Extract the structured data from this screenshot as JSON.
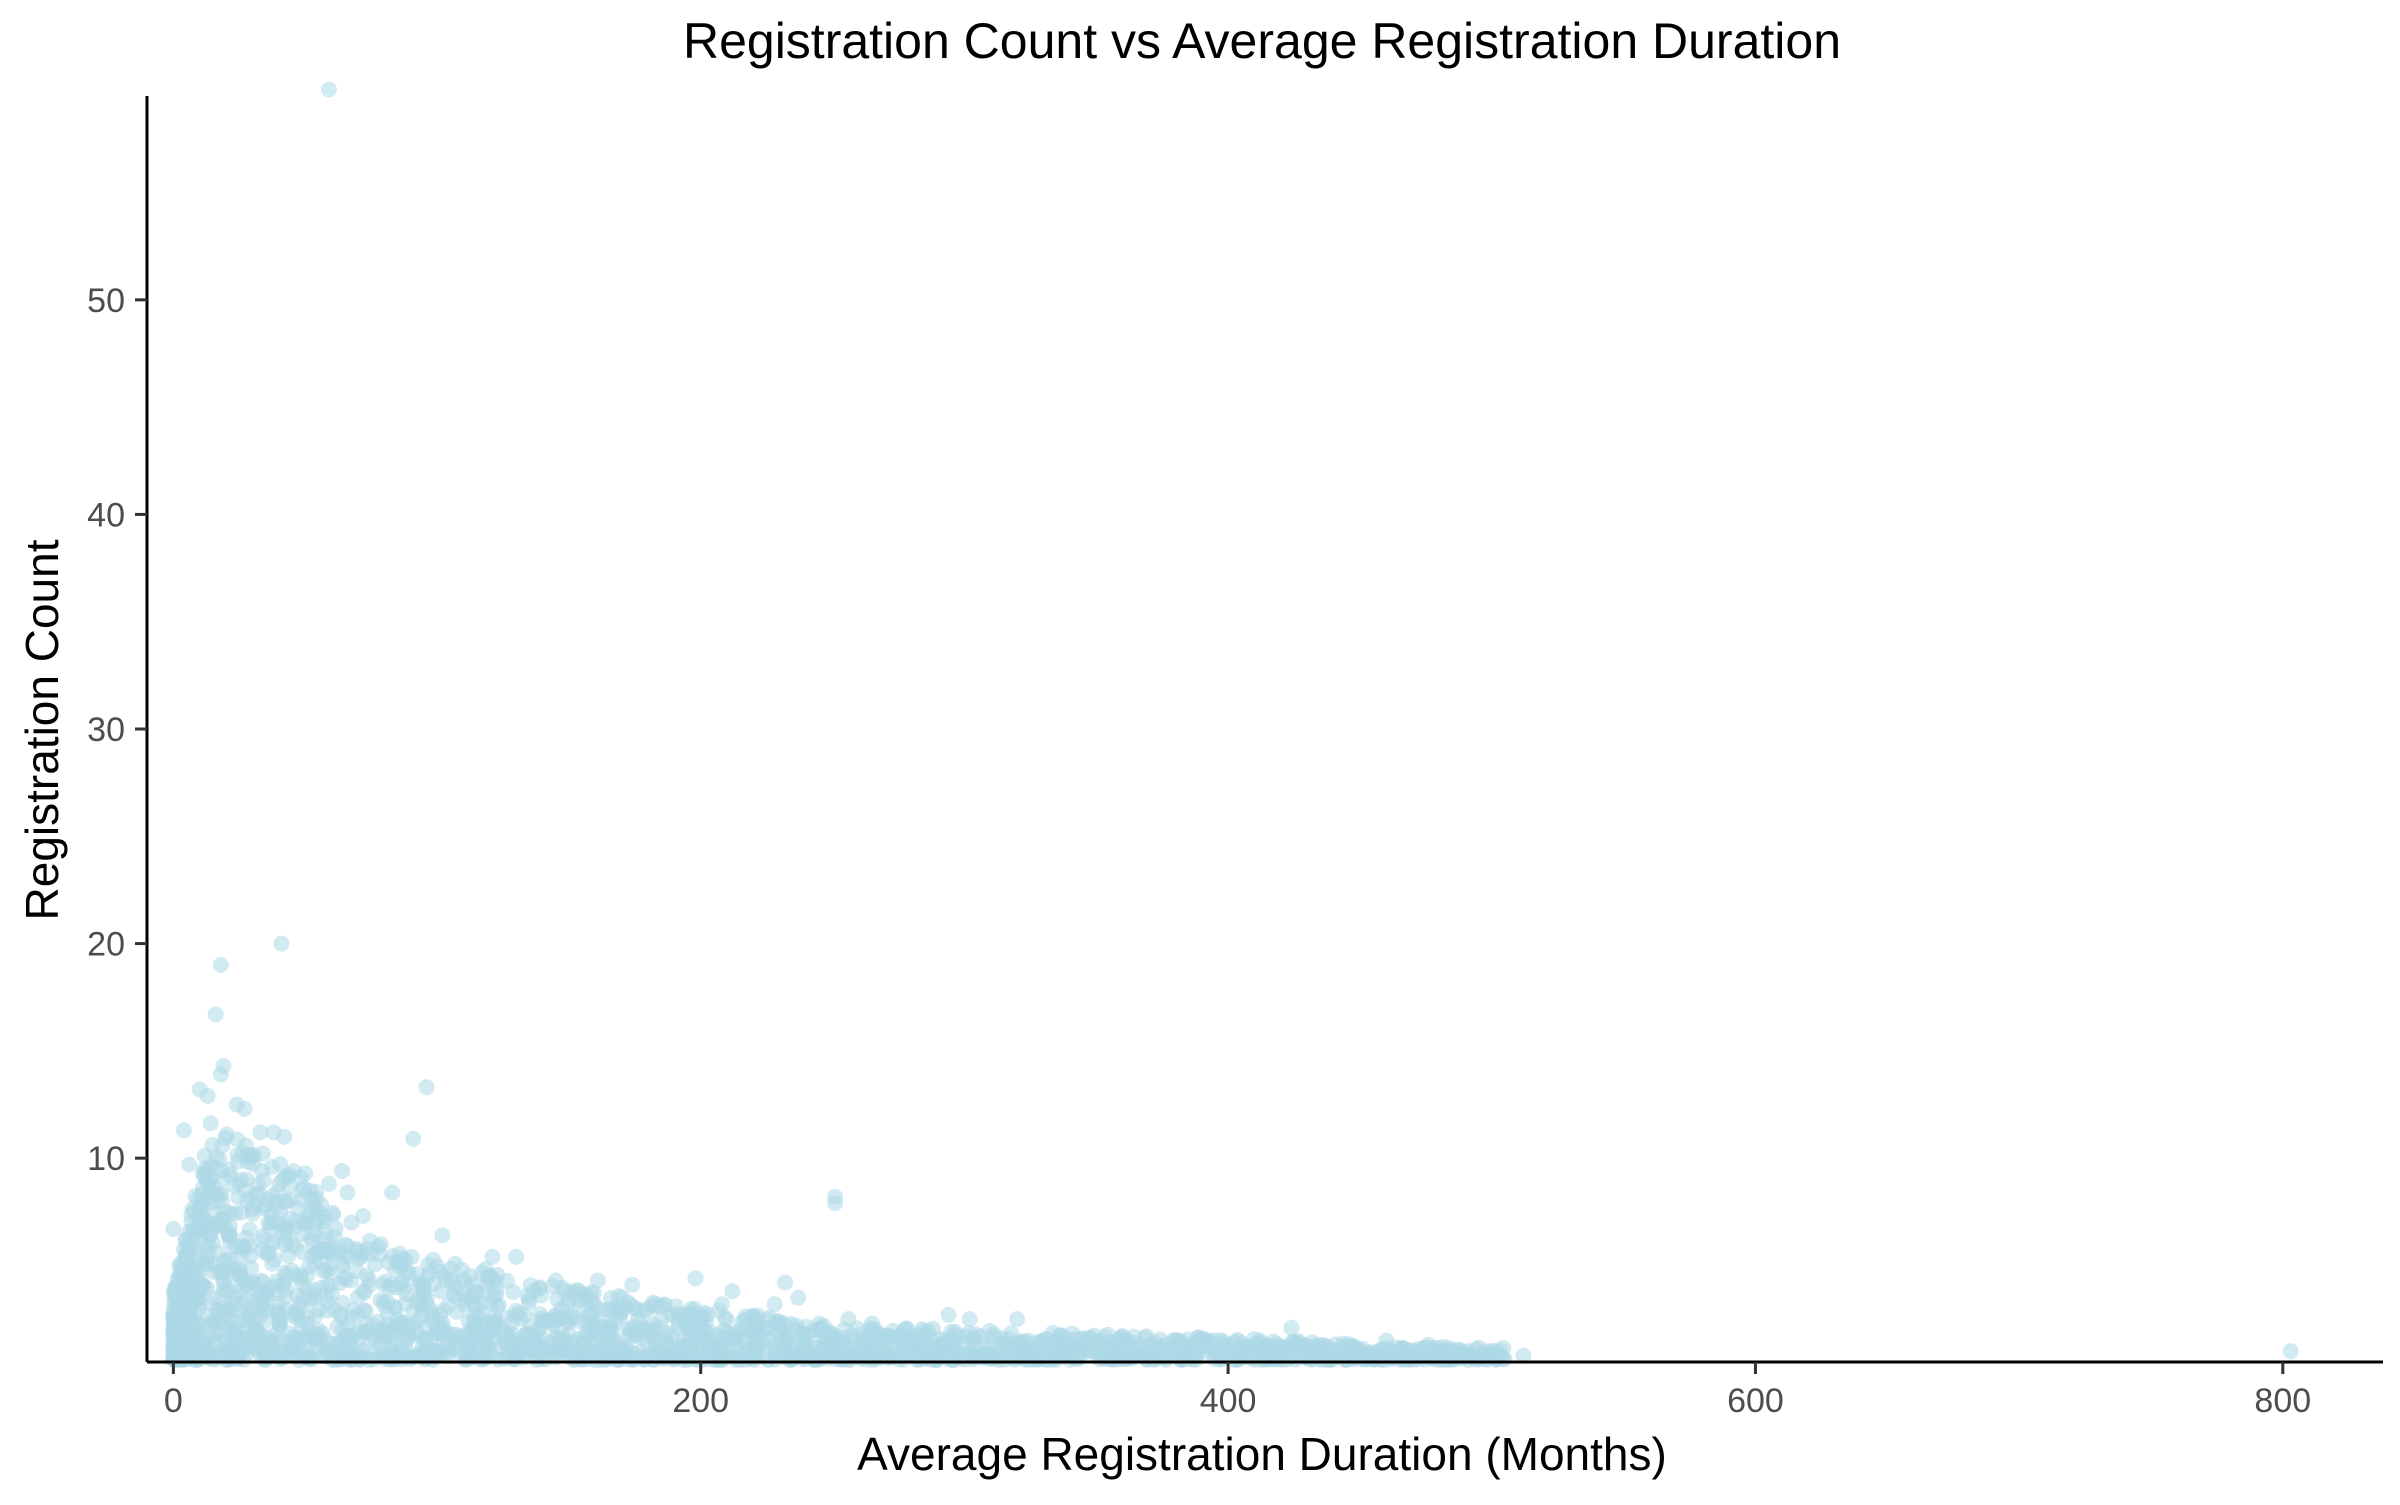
{
  "chart_data": {
    "type": "scatter",
    "title": "Registration Count vs Average Registration Duration",
    "xlabel": "Average Registration Duration (Months)",
    "ylabel": "Registration Count",
    "xlim": [
      -10,
      838
    ],
    "ylim": [
      0.5,
      59.5
    ],
    "x_ticks": [
      0,
      200,
      400,
      600,
      800
    ],
    "x_tick_labels": [
      "0",
      "200",
      "400",
      "600",
      "800"
    ],
    "y_ticks": [
      10,
      20,
      30,
      40,
      50
    ],
    "y_tick_labels": [
      "10",
      "20",
      "30",
      "40",
      "50"
    ],
    "grid": false,
    "legend": "none",
    "point_color": "#add8e6",
    "point_opacity": 0.55,
    "series": [
      {
        "points": [
          [
            59,
            59.8
          ],
          [
            41,
            20
          ],
          [
            18,
            19
          ],
          [
            16,
            16.7
          ],
          [
            19,
            14.3
          ],
          [
            18,
            13.9
          ],
          [
            96,
            13.3
          ],
          [
            10,
            13.2
          ],
          [
            13,
            12.9
          ],
          [
            24,
            12.5
          ],
          [
            27,
            12.3
          ],
          [
            4,
            11.3
          ],
          [
            33,
            11.2
          ],
          [
            38,
            11.2
          ],
          [
            42,
            11.0
          ],
          [
            91,
            10.9
          ],
          [
            6,
            9.7
          ],
          [
            50,
            9.3
          ],
          [
            64,
            9.4
          ],
          [
            59,
            8.8
          ],
          [
            66,
            8.4
          ],
          [
            83,
            8.4
          ],
          [
            251,
            8.2
          ],
          [
            251,
            7.9
          ],
          [
            0,
            6.7
          ],
          [
            72,
            7.3
          ],
          [
            102,
            6.4
          ],
          [
            121,
            5.4
          ],
          [
            130,
            5.4
          ],
          [
            145,
            4.3
          ],
          [
            161,
            4.3
          ],
          [
            174,
            4.1
          ],
          [
            198,
            4.4
          ],
          [
            232,
            4.2
          ],
          [
            212,
            3.8
          ],
          [
            237,
            3.5
          ],
          [
            208,
            3.2
          ],
          [
            228,
            3.2
          ],
          [
            256,
            2.5
          ],
          [
            265,
            2.3
          ],
          [
            294,
            2.7
          ],
          [
            302,
            2.5
          ],
          [
            320,
            2.5
          ],
          [
            345,
            1.6
          ],
          [
            380,
            1.5
          ],
          [
            412,
            1.5
          ],
          [
            424,
            2.1
          ],
          [
            436,
            1.3
          ],
          [
            460,
            1.5
          ],
          [
            476,
            1.3
          ],
          [
            482,
            1.2
          ],
          [
            498,
            1.0
          ],
          [
            512,
            0.8
          ],
          [
            803,
            1.0
          ]
        ]
      }
    ]
  }
}
